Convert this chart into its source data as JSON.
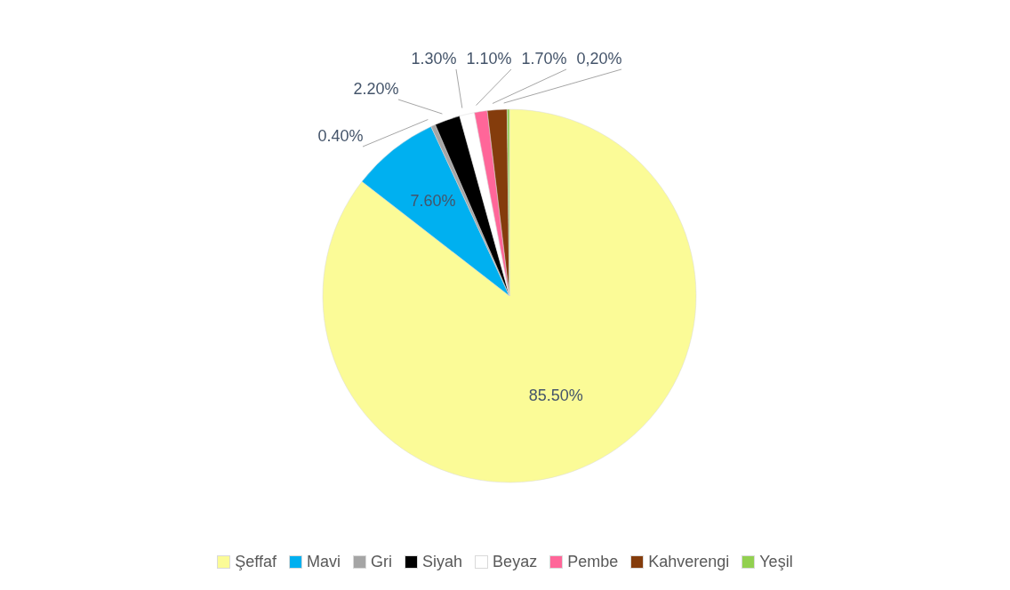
{
  "chart_data": {
    "type": "pie",
    "categories": [
      "Şeffaf",
      "Mavi",
      "Gri",
      "Siyah",
      "Beyaz",
      "Pembe",
      "Kahverengi",
      "Yeşil"
    ],
    "values": [
      85.5,
      7.6,
      0.4,
      2.2,
      1.3,
      1.1,
      1.7,
      0.2
    ],
    "colors": [
      "#fbfb97",
      "#00b0f0",
      "#a5a5a5",
      "#000000",
      "#ffffff",
      "#ff6699",
      "#843c0c",
      "#92d050"
    ],
    "value_labels": [
      "85.50%",
      "7.60%",
      "0.40%",
      "2.20%",
      "1.30%",
      "1.10%",
      "1.70%",
      "0,20%"
    ],
    "legend": "bottom"
  }
}
